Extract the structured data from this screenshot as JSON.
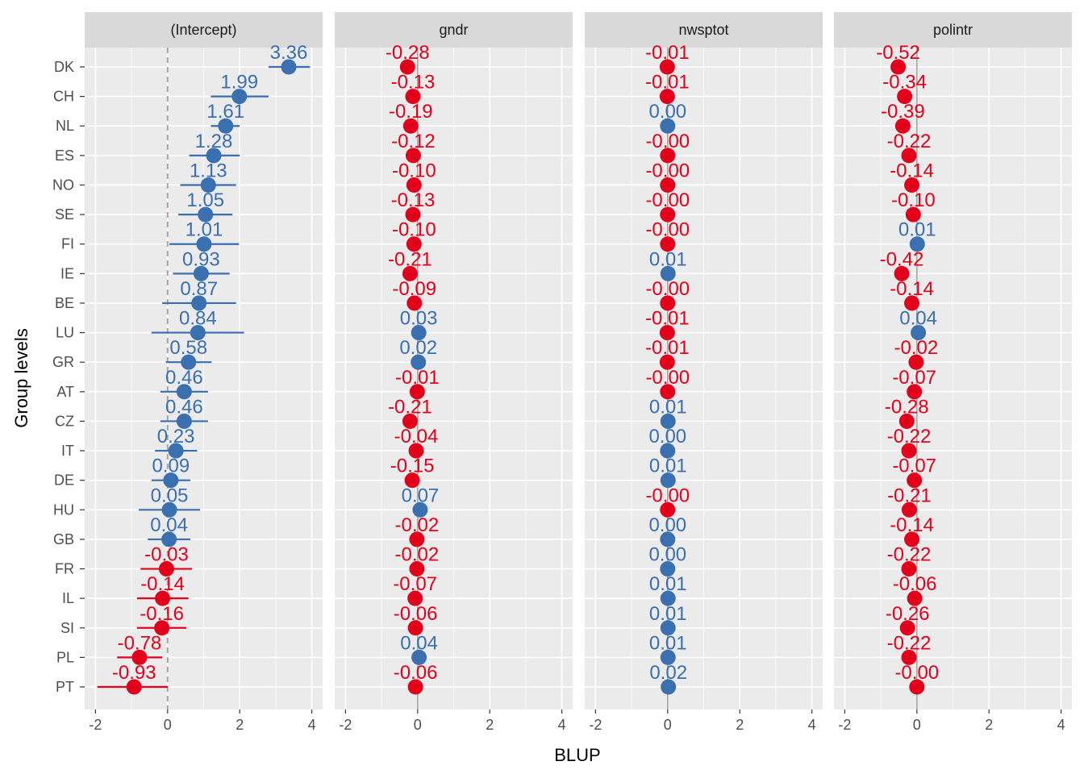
{
  "chart_data": {
    "type": "scatter",
    "subtype": "forest-plot-faceted",
    "xlabel": "BLUP",
    "ylabel": "Group levels",
    "xlim": [
      -2,
      4
    ],
    "xticks": [
      -2,
      0,
      2,
      4
    ],
    "xtick_labels": [
      "-2",
      "0",
      "2",
      "4"
    ],
    "grid": true,
    "reference_line": 0,
    "colors": {
      "positive": "#3a6fb0",
      "negative": "#e3001b",
      "panel_bg": "#ebebeb",
      "strip_bg": "#d9d9d9",
      "grid": "#ffffff",
      "refline": "#a6a6a6"
    },
    "categories": [
      "DK",
      "CH",
      "NL",
      "ES",
      "NO",
      "SE",
      "FI",
      "IE",
      "BE",
      "LU",
      "GR",
      "AT",
      "CZ",
      "IT",
      "DE",
      "HU",
      "GB",
      "FR",
      "IL",
      "SI",
      "PL",
      "PT"
    ],
    "facets": [
      {
        "name": "(Intercept)",
        "values": [
          3.36,
          1.99,
          1.61,
          1.28,
          1.13,
          1.05,
          1.01,
          0.93,
          0.87,
          0.84,
          0.58,
          0.46,
          0.46,
          0.23,
          0.09,
          0.05,
          0.04,
          -0.03,
          -0.14,
          -0.16,
          -0.78,
          -0.93
        ],
        "labels": [
          "3.36",
          "1.99",
          "1.61",
          "1.28",
          "1.13",
          "1.05",
          "1.01",
          "0.93",
          "0.87",
          "0.84",
          "0.58",
          "0.46",
          "0.46",
          "0.23",
          "0.09",
          "0.05",
          "0.04",
          "-0.03",
          "-0.14",
          "-0.16",
          "-0.78",
          "-0.93"
        ],
        "lower": [
          2.8,
          1.2,
          1.2,
          0.6,
          0.35,
          0.3,
          0.05,
          0.15,
          -0.15,
          -0.45,
          -0.05,
          -0.2,
          -0.2,
          -0.35,
          -0.45,
          -0.8,
          -0.55,
          -0.75,
          -0.85,
          -0.85,
          -1.4,
          -1.95
        ],
        "upper": [
          3.95,
          2.8,
          2.0,
          2.0,
          1.9,
          1.8,
          1.98,
          1.72,
          1.9,
          2.12,
          1.22,
          1.12,
          1.12,
          0.82,
          0.63,
          0.9,
          0.63,
          0.68,
          0.58,
          0.52,
          -0.15,
          0.0
        ]
      },
      {
        "name": "gndr",
        "values": [
          -0.28,
          -0.13,
          -0.19,
          -0.12,
          -0.1,
          -0.13,
          -0.1,
          -0.21,
          -0.09,
          0.03,
          0.02,
          -0.01,
          -0.21,
          -0.04,
          -0.15,
          0.07,
          -0.02,
          -0.02,
          -0.07,
          -0.06,
          0.04,
          -0.06
        ],
        "labels": [
          "-0.28",
          "-0.13",
          "-0.19",
          "-0.12",
          "-0.10",
          "-0.13",
          "-0.10",
          "-0.21",
          "-0.09",
          "0.03",
          "0.02",
          "-0.01",
          "-0.21",
          "-0.04",
          "-0.15",
          "0.07",
          "-0.02",
          "-0.02",
          "-0.07",
          "-0.06",
          "0.04",
          "-0.06"
        ]
      },
      {
        "name": "nwsptot",
        "values": [
          -0.01,
          -0.01,
          0.0,
          -0.0,
          -0.0,
          -0.0,
          -0.0,
          0.01,
          -0.0,
          -0.01,
          -0.01,
          -0.0,
          0.01,
          0.0,
          0.01,
          -0.0,
          0.0,
          0.0,
          0.01,
          0.01,
          0.01,
          0.02
        ],
        "labels": [
          "-0.01",
          "-0.01",
          "0.00",
          "-0.00",
          "-0.00",
          "-0.00",
          "-0.00",
          "0.01",
          "-0.00",
          "-0.01",
          "-0.01",
          "-0.00",
          "0.01",
          "0.00",
          "0.01",
          "-0.00",
          "0.00",
          "0.00",
          "0.01",
          "0.01",
          "0.01",
          "0.02"
        ],
        "signs": [
          "neg",
          "neg",
          "pos",
          "neg",
          "neg",
          "neg",
          "neg",
          "pos",
          "neg",
          "neg",
          "neg",
          "neg",
          "pos",
          "pos",
          "pos",
          "neg",
          "pos",
          "pos",
          "pos",
          "pos",
          "pos",
          "pos"
        ]
      },
      {
        "name": "polintr",
        "values": [
          -0.52,
          -0.34,
          -0.39,
          -0.22,
          -0.14,
          -0.1,
          0.01,
          -0.42,
          -0.14,
          0.04,
          -0.02,
          -0.07,
          -0.28,
          -0.22,
          -0.07,
          -0.21,
          -0.14,
          -0.22,
          -0.06,
          -0.26,
          -0.22,
          -0.0
        ],
        "labels": [
          "-0.52",
          "-0.34",
          "-0.39",
          "-0.22",
          "-0.14",
          "-0.10",
          "0.01",
          "-0.42",
          "-0.14",
          "0.04",
          "-0.02",
          "-0.07",
          "-0.28",
          "-0.22",
          "-0.07",
          "-0.21",
          "-0.14",
          "-0.22",
          "-0.06",
          "-0.26",
          "-0.22",
          "-0.00"
        ]
      }
    ]
  }
}
